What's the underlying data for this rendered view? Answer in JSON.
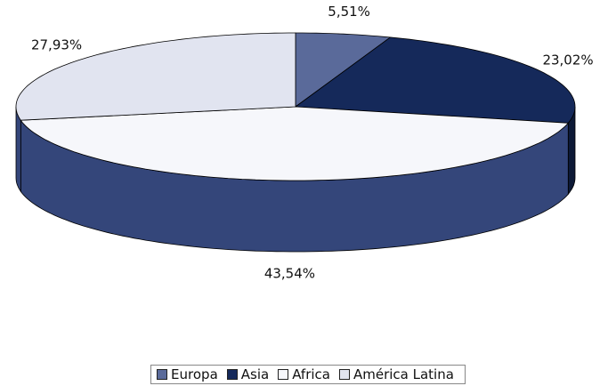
{
  "chart_data": {
    "type": "pie3d",
    "categories": [
      "Europa",
      "Asia",
      "Africa",
      "América Latina"
    ],
    "values": [
      5.51,
      23.02,
      43.54,
      27.93
    ],
    "value_labels": [
      "5,51%",
      "23,02%",
      "43,54%",
      "27,93%"
    ],
    "colors": [
      "#5a6a9a",
      "#15295a",
      "#f6f7fb",
      "#e1e4f0"
    ],
    "legend": "bottom"
  }
}
